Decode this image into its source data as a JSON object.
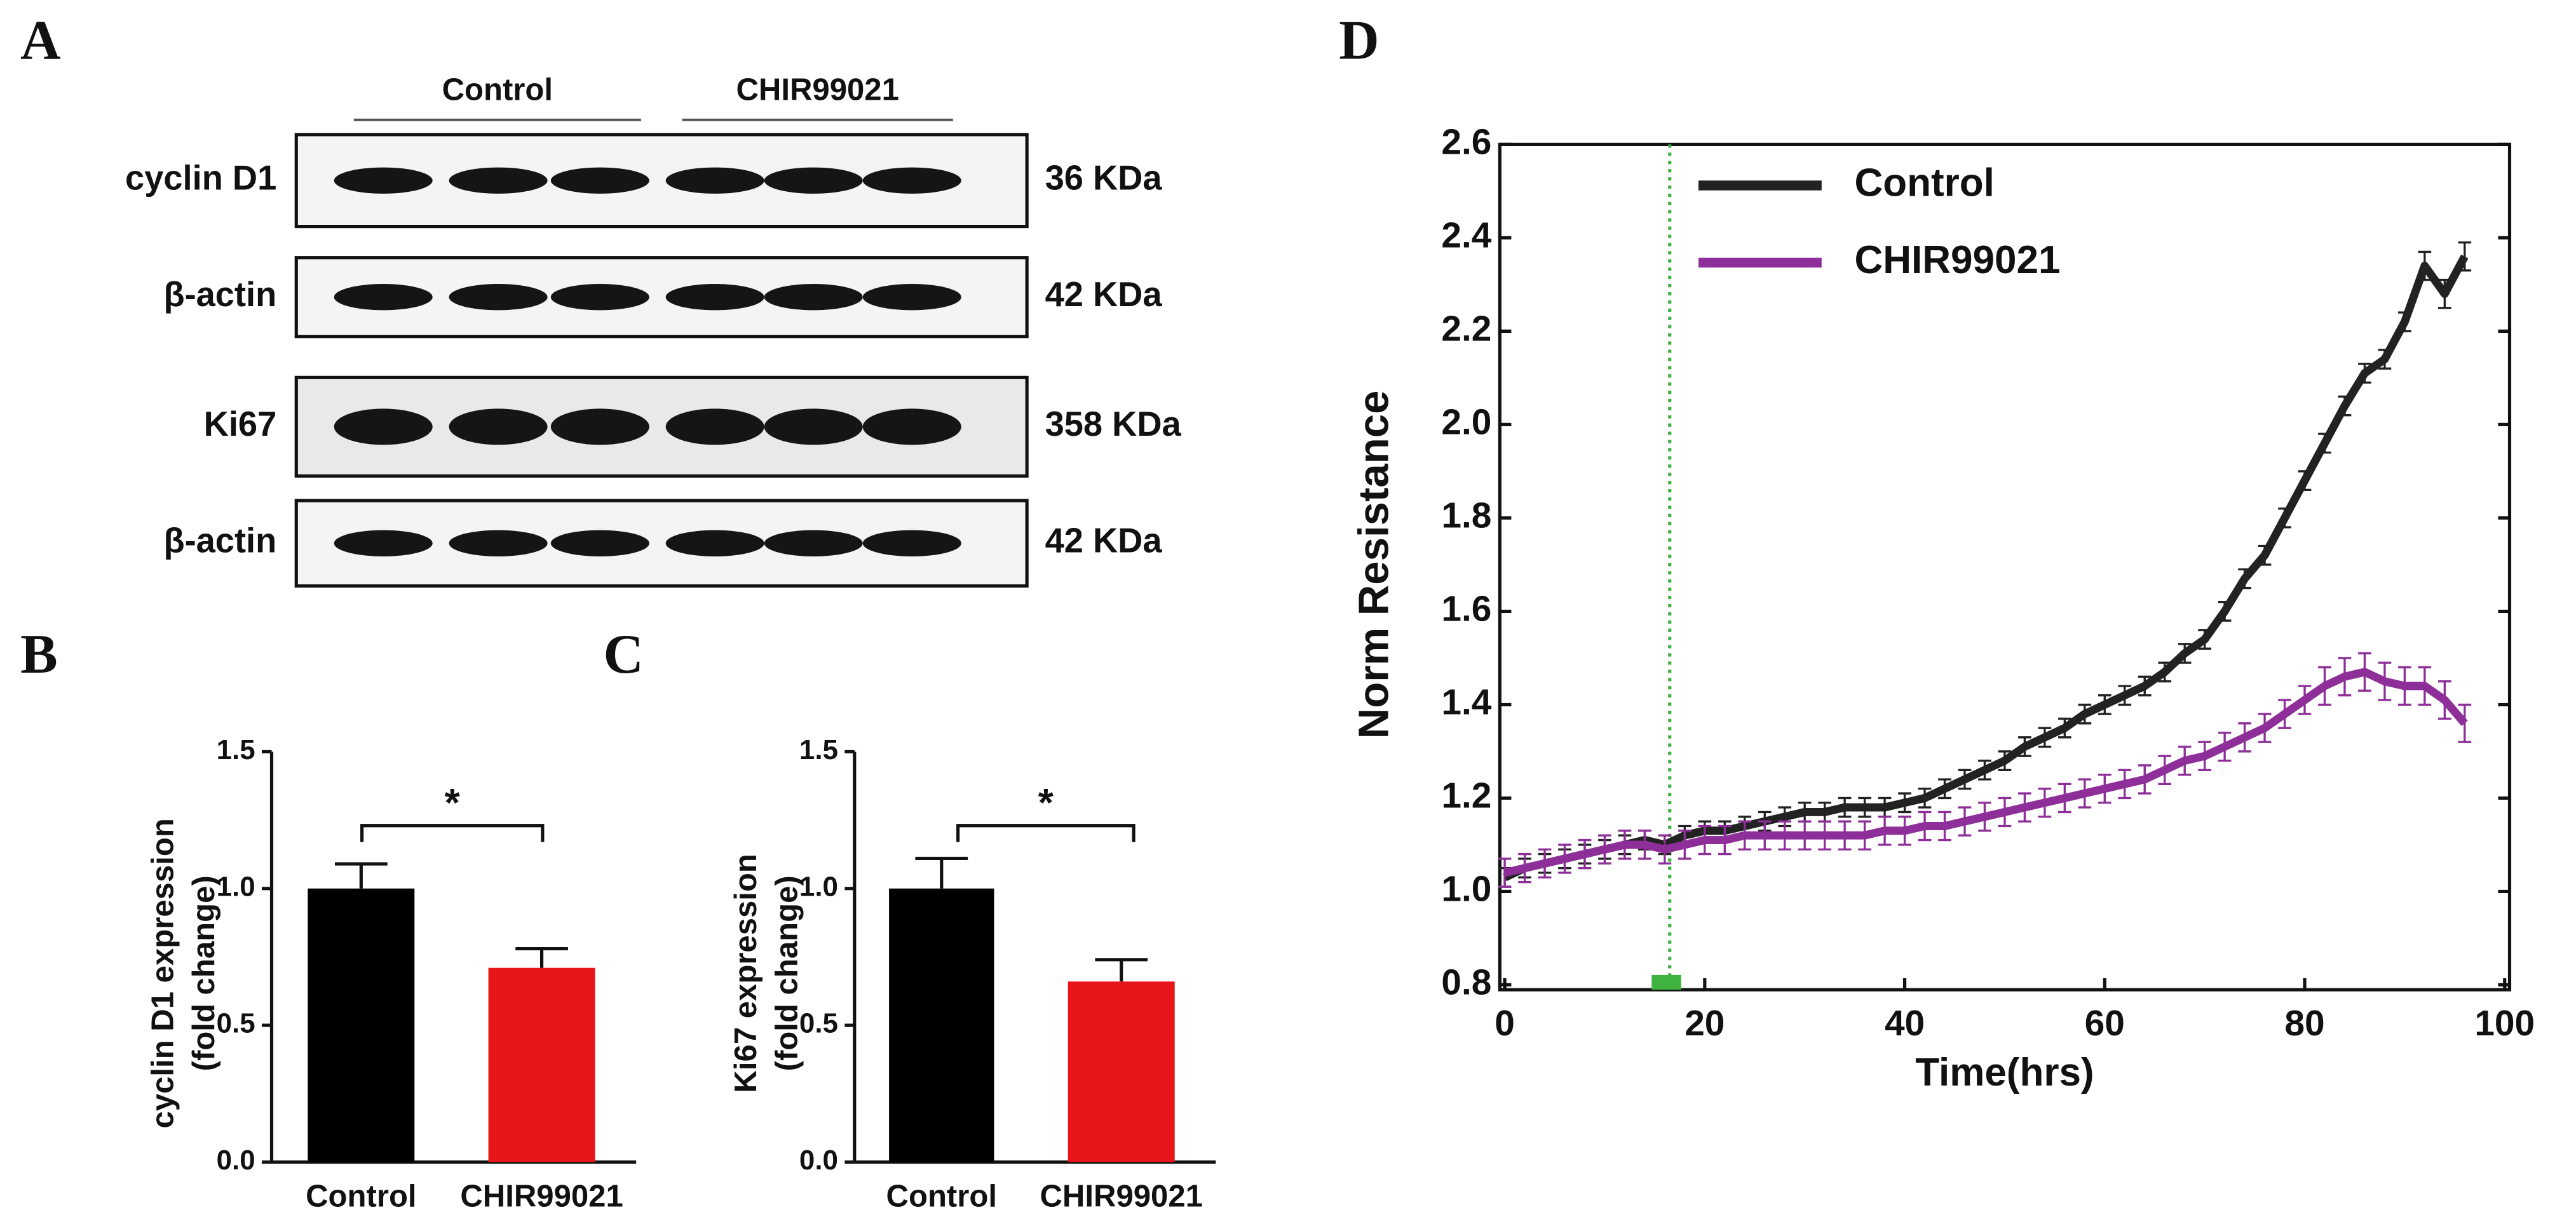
{
  "blot": {
    "panel": "A",
    "groups": [
      "Control",
      "CHIR99021"
    ],
    "rows": [
      {
        "name": "cyclin D1",
        "size": "36 KDa"
      },
      {
        "name": "β-actin",
        "size": "42 KDa"
      },
      {
        "name": "Ki67",
        "size": "358 KDa"
      },
      {
        "name": "β-actin",
        "size": "42 KDa"
      }
    ]
  },
  "chart_data": [
    {
      "type": "bar",
      "panel": "B",
      "ylabel": [
        "cyclin D1 expression",
        "(fold change)"
      ],
      "categories": [
        "Control",
        "CHIR99021"
      ],
      "values": [
        1.0,
        0.71
      ],
      "errors": [
        0.09,
        0.07
      ],
      "colors": [
        "#000000",
        "#e8161b"
      ],
      "ylim": [
        0,
        1.5
      ],
      "yticks": [
        {
          "value": 0,
          "label": "0.0"
        },
        0.5,
        {
          "value": 1,
          "label": "1.0"
        },
        1.5
      ],
      "annotation": "*"
    },
    {
      "type": "bar",
      "panel": "C",
      "ylabel": [
        "Ki67 expression",
        "(fold change)"
      ],
      "categories": [
        "Control",
        "CHIR99021"
      ],
      "values": [
        1.0,
        0.66
      ],
      "errors": [
        0.11,
        0.08
      ],
      "colors": [
        "#000000",
        "#e8161b"
      ],
      "ylim": [
        0,
        1.5
      ],
      "yticks": [
        {
          "value": 0,
          "label": "0.0"
        },
        0.5,
        {
          "value": 1,
          "label": "1.0"
        },
        1.5
      ],
      "annotation": "*"
    },
    {
      "type": "line",
      "panel": "D",
      "xlabel": "Time(hrs)",
      "ylabel": "Norm Resistance",
      "legend": "upper left",
      "vline_x": 16.5,
      "vline_color": "#3fb33f",
      "x": [
        0,
        2,
        4,
        6,
        8,
        10,
        12,
        14,
        16,
        18,
        20,
        22,
        24,
        26,
        28,
        30,
        32,
        34,
        36,
        38,
        40,
        42,
        44,
        46,
        48,
        50,
        52,
        54,
        56,
        58,
        60,
        62,
        64,
        66,
        68,
        70,
        72,
        74,
        76,
        78,
        80,
        82,
        84,
        86,
        88,
        90,
        92,
        94,
        96
      ],
      "series": [
        {
          "name": "Control",
          "color": "#222222",
          "values": [
            1.03,
            1.05,
            1.06,
            1.07,
            1.08,
            1.09,
            1.1,
            1.11,
            1.1,
            1.12,
            1.13,
            1.13,
            1.14,
            1.15,
            1.16,
            1.17,
            1.17,
            1.18,
            1.18,
            1.18,
            1.19,
            1.2,
            1.22,
            1.24,
            1.26,
            1.28,
            1.31,
            1.33,
            1.35,
            1.38,
            1.4,
            1.42,
            1.44,
            1.47,
            1.51,
            1.54,
            1.6,
            1.67,
            1.72,
            1.8,
            1.88,
            1.96,
            2.04,
            2.11,
            2.14,
            2.22,
            2.34,
            2.28,
            2.36
          ],
          "errors": [
            0.02,
            0.02,
            0.02,
            0.02,
            0.02,
            0.02,
            0.02,
            0.02,
            0.02,
            0.02,
            0.02,
            0.02,
            0.02,
            0.02,
            0.02,
            0.02,
            0.02,
            0.02,
            0.02,
            0.02,
            0.02,
            0.02,
            0.02,
            0.02,
            0.02,
            0.02,
            0.02,
            0.02,
            0.02,
            0.02,
            0.02,
            0.02,
            0.02,
            0.02,
            0.02,
            0.02,
            0.02,
            0.02,
            0.02,
            0.02,
            0.02,
            0.02,
            0.02,
            0.02,
            0.02,
            0.02,
            0.03,
            0.03,
            0.03
          ]
        },
        {
          "name": "CHIR99021",
          "color": "#8e2f99",
          "values": [
            1.04,
            1.05,
            1.06,
            1.07,
            1.08,
            1.09,
            1.1,
            1.1,
            1.09,
            1.1,
            1.11,
            1.11,
            1.12,
            1.12,
            1.12,
            1.12,
            1.12,
            1.12,
            1.12,
            1.13,
            1.13,
            1.14,
            1.14,
            1.15,
            1.16,
            1.17,
            1.18,
            1.19,
            1.2,
            1.21,
            1.22,
            1.23,
            1.24,
            1.26,
            1.28,
            1.29,
            1.31,
            1.33,
            1.35,
            1.38,
            1.41,
            1.44,
            1.46,
            1.47,
            1.45,
            1.44,
            1.44,
            1.41,
            1.36
          ],
          "errors": [
            0.03,
            0.03,
            0.03,
            0.03,
            0.03,
            0.03,
            0.03,
            0.03,
            0.03,
            0.03,
            0.03,
            0.03,
            0.03,
            0.03,
            0.03,
            0.03,
            0.03,
            0.03,
            0.03,
            0.03,
            0.03,
            0.03,
            0.03,
            0.03,
            0.03,
            0.03,
            0.03,
            0.03,
            0.03,
            0.03,
            0.03,
            0.03,
            0.03,
            0.03,
            0.03,
            0.03,
            0.03,
            0.03,
            0.03,
            0.03,
            0.03,
            0.04,
            0.04,
            0.04,
            0.04,
            0.04,
            0.04,
            0.04,
            0.04
          ]
        }
      ],
      "xlim": [
        0,
        100
      ],
      "xticks": [
        0,
        20,
        40,
        60,
        80,
        100
      ],
      "ylim": [
        0.8,
        2.6
      ],
      "yticks": [
        0.8,
        {
          "value": 1,
          "label": "1.0"
        },
        1.2,
        1.4,
        1.6,
        1.8,
        {
          "value": 2,
          "label": "2.0"
        },
        2.2,
        2.4,
        2.6
      ]
    }
  ]
}
